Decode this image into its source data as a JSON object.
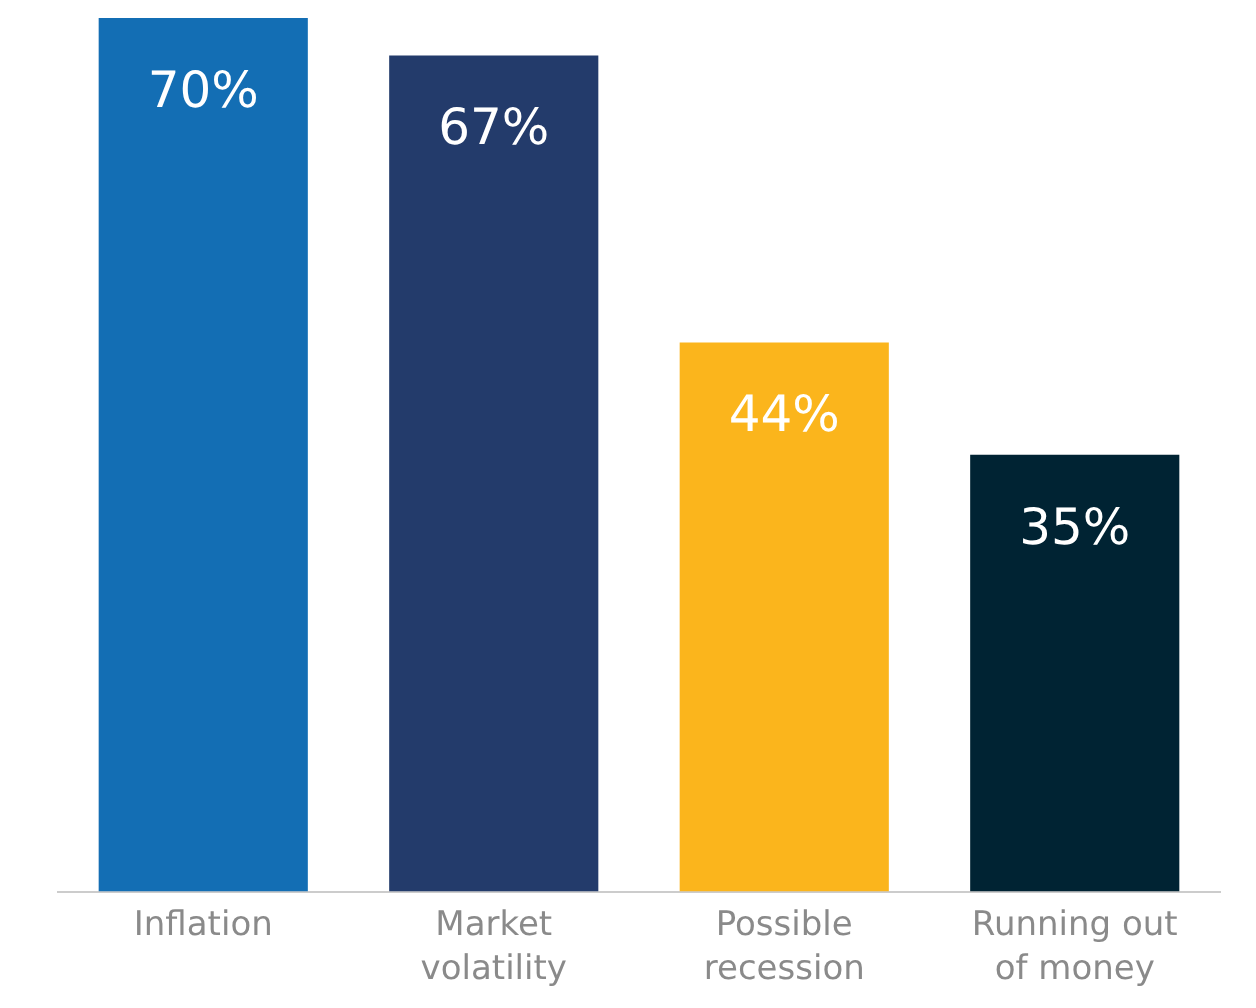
{
  "chart_data": {
    "type": "bar",
    "categories": [
      "Inflation",
      "Market volatility",
      "Possible recession",
      "Running out of money"
    ],
    "values": [
      70,
      67,
      44,
      35
    ],
    "colors": [
      "#136eb4",
      "#233b6b",
      "#fbb51c",
      "#002333"
    ],
    "value_labels": [
      "70%",
      "67%",
      "44%",
      "35%"
    ],
    "ylim": [
      0,
      70
    ],
    "tick_labels": "x",
    "grid": false,
    "legend": false
  }
}
